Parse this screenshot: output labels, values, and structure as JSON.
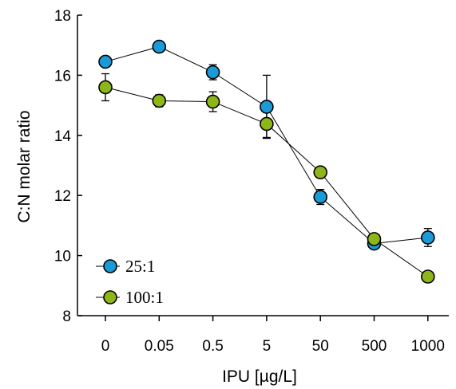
{
  "chart_data": {
    "type": "line",
    "title": "",
    "xlabel": "IPU [µg/L]",
    "ylabel": "C:N molar ratio",
    "categories": [
      "0",
      "0.05",
      "0.5",
      "5",
      "50",
      "500",
      "1000"
    ],
    "ylim": [
      8,
      18
    ],
    "yticks": [
      8,
      10,
      12,
      14,
      16,
      18
    ],
    "grid": false,
    "legend_position": "bottom-left",
    "series": [
      {
        "name": "25:1",
        "color": "#1a9ad6",
        "marker": "circle",
        "values": [
          16.45,
          16.95,
          16.1,
          14.95,
          11.95,
          10.4,
          10.6
        ],
        "error": [
          0,
          0,
          0.25,
          1.05,
          0.25,
          0.1,
          0.3
        ]
      },
      {
        "name": "100:1",
        "color": "#8db619",
        "marker": "circle",
        "values": [
          15.6,
          15.15,
          15.12,
          14.38,
          12.77,
          10.55,
          9.3
        ],
        "error": [
          0.45,
          0.2,
          0.33,
          0.45,
          0.1,
          0.1,
          0.05
        ]
      }
    ]
  }
}
